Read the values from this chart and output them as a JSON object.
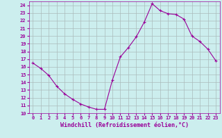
{
  "x": [
    0,
    1,
    2,
    3,
    4,
    5,
    6,
    7,
    8,
    9,
    10,
    11,
    12,
    13,
    14,
    15,
    16,
    17,
    18,
    19,
    20,
    21,
    22,
    23
  ],
  "y": [
    16.5,
    15.8,
    14.9,
    13.5,
    12.5,
    11.8,
    11.2,
    10.8,
    10.5,
    10.5,
    14.3,
    17.3,
    18.5,
    19.9,
    21.8,
    24.2,
    23.3,
    22.9,
    22.8,
    22.2,
    20.0,
    19.3,
    18.3,
    16.8
  ],
  "line_color": "#990099",
  "marker": "D",
  "marker_size": 2,
  "bg_color": "#cceeee",
  "grid_color": "#aabbbb",
  "xlabel": "Windchill (Refroidissement éolien,°C)",
  "xlabel_color": "#990099",
  "tick_color": "#990099",
  "xlim": [
    -0.5,
    23.5
  ],
  "ylim": [
    10,
    24.5
  ],
  "yticks": [
    10,
    11,
    12,
    13,
    14,
    15,
    16,
    17,
    18,
    19,
    20,
    21,
    22,
    23,
    24
  ],
  "xticks": [
    0,
    1,
    2,
    3,
    4,
    5,
    6,
    7,
    8,
    9,
    10,
    11,
    12,
    13,
    14,
    15,
    16,
    17,
    18,
    19,
    20,
    21,
    22,
    23
  ]
}
